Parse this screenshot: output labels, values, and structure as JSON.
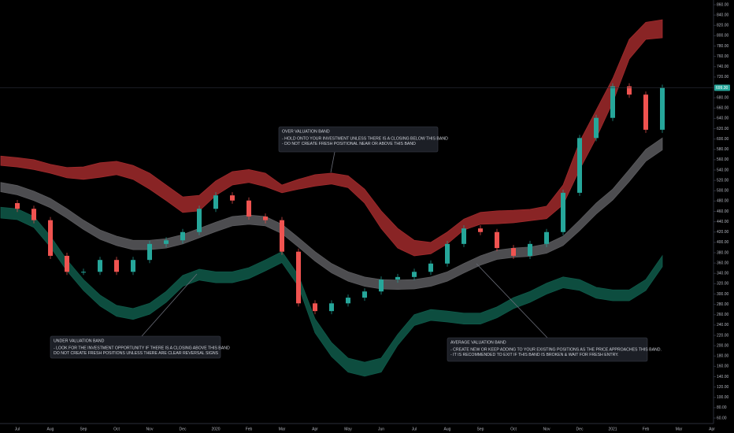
{
  "chart_data": {
    "type": "candlestick-bands",
    "categories": [
      null,
      "Jul",
      null,
      "Aug",
      null,
      "Sep",
      null,
      "Oct",
      null,
      "Nov",
      null,
      "Dec",
      null,
      "2020",
      null,
      "Feb",
      null,
      "Mar",
      null,
      "Apr",
      null,
      "May",
      null,
      "Jun",
      null,
      "Jul",
      null,
      "Aug",
      null,
      "Sep",
      null,
      "Oct",
      null,
      "Nov",
      null,
      "Dec",
      null,
      "2021",
      null,
      "Feb",
      null,
      "Mar",
      null,
      "Apr"
    ],
    "ylim": [
      60,
      860
    ],
    "yticks": [
      {
        "value": 60,
        "label": "60.00"
      },
      {
        "value": 80,
        "label": "80.00"
      },
      {
        "value": 100,
        "label": "100.00"
      },
      {
        "value": 120,
        "label": "120.00"
      },
      {
        "value": 140,
        "label": "140.00"
      },
      {
        "value": 160,
        "label": "160.00"
      },
      {
        "value": 180,
        "label": "180.00"
      },
      {
        "value": 200,
        "label": "200.00"
      },
      {
        "value": 220,
        "label": "220.00"
      },
      {
        "value": 240,
        "label": "240.00"
      },
      {
        "value": 260,
        "label": "260.00"
      },
      {
        "value": 280,
        "label": "280.00"
      },
      {
        "value": 300,
        "label": "300.00"
      },
      {
        "value": 320,
        "label": "320.00"
      },
      {
        "value": 340,
        "label": "340.00"
      },
      {
        "value": 360,
        "label": "360.00"
      },
      {
        "value": 380,
        "label": "380.00"
      },
      {
        "value": 400,
        "label": "400.00"
      },
      {
        "value": 420,
        "label": "420.00"
      },
      {
        "value": 440,
        "label": "440.00"
      },
      {
        "value": 460,
        "label": "460.00"
      },
      {
        "value": 480,
        "label": "480.00"
      },
      {
        "value": 500,
        "label": "500.00"
      },
      {
        "value": 520,
        "label": "520.00"
      },
      {
        "value": 540,
        "label": "540.00"
      },
      {
        "value": 560,
        "label": "560.00"
      },
      {
        "value": 580,
        "label": "580.00"
      },
      {
        "value": 600,
        "label": "600.00"
      },
      {
        "value": 620,
        "label": "620.00"
      },
      {
        "value": 640,
        "label": "640.00"
      },
      {
        "value": 660,
        "label": "660.00"
      },
      {
        "value": 680,
        "label": "680.00"
      },
      {
        "value": 700,
        "label": "700.00"
      },
      {
        "value": 720,
        "label": "720.00"
      },
      {
        "value": 740,
        "label": "740.00"
      },
      {
        "value": 760,
        "label": "760.00"
      },
      {
        "value": 780,
        "label": "780.00"
      },
      {
        "value": 800,
        "label": "800.00"
      },
      {
        "value": 820,
        "label": "820.00"
      },
      {
        "value": 840,
        "label": "840.00"
      },
      {
        "value": 860,
        "label": "860.00"
      }
    ],
    "bands": [
      {
        "color": "#a12a2c",
        "upper": [
          567,
          564,
          560,
          551,
          545,
          546,
          554,
          557,
          549,
          534,
          511,
          488,
          491,
          519,
          537,
          541,
          534,
          511,
          522,
          531,
          534,
          529,
          503,
          461,
          427,
          404,
          400,
          420,
          445,
          458,
          461,
          462,
          464,
          470,
          511,
          595,
          656,
          717,
          793,
          826,
          831,
          null,
          null,
          null
        ],
        "lower": [
          549,
          546,
          541,
          534,
          525,
          522,
          526,
          531,
          522,
          503,
          481,
          458,
          461,
          491,
          511,
          516,
          508,
          496,
          503,
          509,
          513,
          506,
          476,
          427,
          389,
          374,
          378,
          397,
          424,
          435,
          436,
          438,
          442,
          446,
          473,
          541,
          602,
          671,
          755,
          793,
          796,
          null,
          null,
          null
        ]
      },
      {
        "color": "#5b5b5e",
        "upper": [
          516,
          510,
          499,
          485,
          465,
          443,
          424,
          412,
          404,
          404,
          407,
          415,
          427,
          439,
          450,
          453,
          450,
          435,
          409,
          382,
          359,
          343,
          333,
          328,
          327,
          328,
          333,
          343,
          359,
          374,
          385,
          389,
          391,
          397,
          412,
          443,
          476,
          503,
          541,
          580,
          602,
          null,
          null,
          null
        ],
        "lower": [
          498,
          492,
          481,
          467,
          447,
          425,
          406,
          394,
          386,
          386,
          389,
          397,
          409,
          421,
          432,
          435,
          432,
          417,
          391,
          364,
          341,
          325,
          315,
          310,
          309,
          310,
          315,
          325,
          341,
          356,
          367,
          371,
          373,
          379,
          394,
          423,
          455,
          482,
          518,
          557,
          579,
          null,
          null,
          null
        ]
      },
      {
        "color": "#0f5a4a",
        "upper": [
          468,
          465,
          450,
          412,
          366,
          328,
          298,
          278,
          272,
          282,
          305,
          336,
          348,
          343,
          343,
          351,
          366,
          382,
          336,
          252,
          206,
          176,
          168,
          176,
          222,
          260,
          270,
          267,
          263,
          263,
          275,
          293,
          305,
          321,
          333,
          328,
          313,
          308,
          308,
          328,
          374,
          null,
          null,
          null
        ],
        "lower": [
          447,
          444,
          429,
          391,
          345,
          307,
          277,
          257,
          251,
          261,
          284,
          315,
          327,
          322,
          322,
          330,
          345,
          361,
          315,
          225,
          179,
          149,
          141,
          149,
          201,
          239,
          249,
          246,
          242,
          242,
          254,
          272,
          284,
          300,
          312,
          307,
          292,
          287,
          287,
          307,
          353,
          null,
          null,
          null
        ]
      }
    ],
    "price": {
      "up_color": "#26a69a",
      "down_color": "#ef5350",
      "values": [
        476,
        465,
        443,
        374,
        343,
        343,
        366,
        343,
        366,
        397,
        404,
        420,
        465,
        491,
        481,
        450,
        443,
        382,
        282,
        267,
        282,
        293,
        305,
        328,
        333,
        343,
        359,
        397,
        427,
        420,
        389,
        374,
        397,
        420,
        496,
        602,
        641,
        702,
        686,
        618,
        699.3,
        null,
        null,
        null
      ]
    },
    "last_price": {
      "value": 699.3,
      "label": "699.30",
      "color": "#26a69a"
    },
    "annotations": [
      {
        "title": "OVER VALUATION BAND",
        "lines": [
          "- HOLD ONTO YOUR INVESTMENT UNLESS THERE IS A CLOSING BELOW THIS BAND",
          "- DO NOT CREATE FRESH POSITIONAL NEAR OR ABOVE THIS BAND"
        ]
      },
      {
        "title": "UNDER VALUATION BAND",
        "lines": [
          "- LOOK FOR THE INVESTMENT OPPORTUNITY IF THERE IS A CLOSING ABOVE THIS BAND",
          " DO NOT CREATE FRESH POSITIONS UNLESS THERE ARE CLEAR REVERSAL SIGNS"
        ]
      },
      {
        "title": "AVERAGE VALUATION BAND",
        "lines": [
          "- CREATE NEW OR KEEP ADDING TO YOUR EXISTING POSITIONS AS THE PRICE APPROACHES THIS BAND.",
          "- IT IS RECOMMENDED TO EXIT IF THIS BAND IS BROKEN & WAIT FOR FRESH ENTRY."
        ]
      }
    ]
  }
}
